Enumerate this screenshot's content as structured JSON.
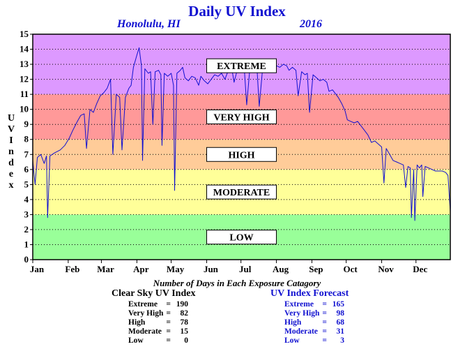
{
  "chart_data": {
    "type": "line",
    "title": "Daily UV Index",
    "subtitle_location": "Honolulu, HI",
    "subtitle_year": "2016",
    "ylabel": "UV Index",
    "ylim": [
      0,
      15
    ],
    "xlim": [
      1,
      366
    ],
    "y_ticks": [
      "0",
      "1",
      "2",
      "3",
      "4",
      "5",
      "6",
      "7",
      "8",
      "9",
      "10",
      "11",
      "12",
      "13",
      "14",
      "15"
    ],
    "x_ticks": [
      {
        "label": "Jan",
        "day": 1
      },
      {
        "label": "Feb",
        "day": 32
      },
      {
        "label": "Mar",
        "day": 61
      },
      {
        "label": "Apr",
        "day": 92
      },
      {
        "label": "May",
        "day": 122
      },
      {
        "label": "Jun",
        "day": 153
      },
      {
        "label": "Jul",
        "day": 183
      },
      {
        "label": "Aug",
        "day": 214
      },
      {
        "label": "Sep",
        "day": 245
      },
      {
        "label": "Oct",
        "day": 275
      },
      {
        "label": "Nov",
        "day": 306
      },
      {
        "label": "Dec",
        "day": 336
      }
    ],
    "grid": "horizontal-dotted",
    "zones": [
      {
        "label": "LOW",
        "from": 0,
        "to": 3,
        "color": "#99ff99"
      },
      {
        "label": "MODERATE",
        "from": 3,
        "to": 6,
        "color": "#ffff99"
      },
      {
        "label": "HIGH",
        "from": 6,
        "to": 8,
        "color": "#ffcc99"
      },
      {
        "label": "VERY HIGH",
        "from": 8,
        "to": 11,
        "color": "#ff9999"
      },
      {
        "label": "EXTREME",
        "from": 11,
        "to": 15,
        "color": "#dd99ff"
      }
    ],
    "series": [
      {
        "color": "#1010d0",
        "points": [
          [
            1,
            6.6
          ],
          [
            3,
            5.0
          ],
          [
            5,
            6.8
          ],
          [
            8,
            7.0
          ],
          [
            11,
            6.4
          ],
          [
            13,
            6.9
          ],
          [
            14,
            2.8
          ],
          [
            16,
            6.9
          ],
          [
            20,
            7.1
          ],
          [
            25,
            7.3
          ],
          [
            29,
            7.6
          ],
          [
            33,
            8.1
          ],
          [
            36,
            8.6
          ],
          [
            40,
            9.2
          ],
          [
            43,
            9.6
          ],
          [
            46,
            9.7
          ],
          [
            48,
            7.4
          ],
          [
            51,
            10.0
          ],
          [
            54,
            9.8
          ],
          [
            57,
            10.4
          ],
          [
            60,
            10.9
          ],
          [
            63,
            11.1
          ],
          [
            66,
            11.4
          ],
          [
            69,
            12.0
          ],
          [
            71,
            7.0
          ],
          [
            74,
            11.0
          ],
          [
            77,
            10.8
          ],
          [
            79,
            7.3
          ],
          [
            82,
            10.8
          ],
          [
            85,
            11.4
          ],
          [
            87,
            11.6
          ],
          [
            89,
            12.8
          ],
          [
            92,
            13.6
          ],
          [
            94,
            14.1
          ],
          [
            96,
            12.9
          ],
          [
            97,
            6.6
          ],
          [
            99,
            12.7
          ],
          [
            102,
            12.4
          ],
          [
            104,
            12.5
          ],
          [
            106,
            9.0
          ],
          [
            108,
            12.5
          ],
          [
            111,
            12.6
          ],
          [
            113,
            12.3
          ],
          [
            114,
            7.6
          ],
          [
            116,
            12.4
          ],
          [
            119,
            12.2
          ],
          [
            122,
            12.4
          ],
          [
            124,
            11.6
          ],
          [
            125,
            4.6
          ],
          [
            127,
            12.4
          ],
          [
            130,
            12.6
          ],
          [
            132,
            12.8
          ],
          [
            134,
            12.1
          ],
          [
            137,
            11.9
          ],
          [
            140,
            12.2
          ],
          [
            143,
            12.1
          ],
          [
            146,
            11.6
          ],
          [
            148,
            12.2
          ],
          [
            151,
            11.9
          ],
          [
            154,
            11.7
          ],
          [
            157,
            12.0
          ],
          [
            160,
            12.3
          ],
          [
            163,
            12.2
          ],
          [
            166,
            12.4
          ],
          [
            169,
            12.0
          ],
          [
            172,
            12.6
          ],
          [
            175,
            12.7
          ],
          [
            177,
            11.8
          ],
          [
            180,
            12.7
          ],
          [
            183,
            12.9
          ],
          [
            186,
            12.6
          ],
          [
            188,
            10.3
          ],
          [
            191,
            12.9
          ],
          [
            194,
            13.0
          ],
          [
            197,
            12.7
          ],
          [
            199,
            10.2
          ],
          [
            202,
            12.8
          ],
          [
            205,
            13.1
          ],
          [
            208,
            12.9
          ],
          [
            211,
            13.0
          ],
          [
            214,
            12.9
          ],
          [
            217,
            12.8
          ],
          [
            220,
            13.0
          ],
          [
            223,
            12.9
          ],
          [
            225,
            12.6
          ],
          [
            228,
            12.8
          ],
          [
            231,
            12.6
          ],
          [
            233,
            10.9
          ],
          [
            236,
            12.5
          ],
          [
            239,
            12.3
          ],
          [
            241,
            12.4
          ],
          [
            243,
            9.8
          ],
          [
            246,
            12.3
          ],
          [
            249,
            12.1
          ],
          [
            252,
            11.9
          ],
          [
            255,
            12.0
          ],
          [
            258,
            11.8
          ],
          [
            260,
            11.2
          ],
          [
            263,
            11.3
          ],
          [
            266,
            11.0
          ],
          [
            268,
            10.8
          ],
          [
            271,
            10.4
          ],
          [
            274,
            9.9
          ],
          [
            276,
            9.3
          ],
          [
            279,
            9.2
          ],
          [
            282,
            9.1
          ],
          [
            285,
            9.2
          ],
          [
            288,
            8.9
          ],
          [
            291,
            8.6
          ],
          [
            294,
            8.3
          ],
          [
            297,
            7.8
          ],
          [
            300,
            7.9
          ],
          [
            303,
            7.7
          ],
          [
            306,
            7.5
          ],
          [
            308,
            5.1
          ],
          [
            310,
            7.4
          ],
          [
            313,
            7.0
          ],
          [
            316,
            6.6
          ],
          [
            319,
            6.5
          ],
          [
            322,
            6.4
          ],
          [
            325,
            6.3
          ],
          [
            327,
            4.8
          ],
          [
            329,
            6.2
          ],
          [
            331,
            6.1
          ],
          [
            332,
            2.8
          ],
          [
            334,
            6.0
          ],
          [
            335,
            2.6
          ],
          [
            337,
            6.3
          ],
          [
            339,
            6.1
          ],
          [
            341,
            6.3
          ],
          [
            342,
            4.2
          ],
          [
            344,
            6.2
          ],
          [
            347,
            6.1
          ],
          [
            350,
            6.0
          ],
          [
            353,
            5.9
          ],
          [
            356,
            5.9
          ],
          [
            359,
            5.9
          ],
          [
            362,
            5.8
          ],
          [
            364,
            5.6
          ],
          [
            366,
            3.2
          ]
        ]
      }
    ]
  },
  "stats_title": "Number of Days in Each Exposure Catagory",
  "clear_sky": {
    "title": "Clear Sky UV Index",
    "rows": [
      {
        "label": "Extreme",
        "value": "190"
      },
      {
        "label": "Very High",
        "value": "82"
      },
      {
        "label": "High",
        "value": "78"
      },
      {
        "label": "Moderate",
        "value": "15"
      },
      {
        "label": "Low",
        "value": "0"
      }
    ]
  },
  "forecast": {
    "title": "UV Index Forecast",
    "rows": [
      {
        "label": "Extreme",
        "value": "165"
      },
      {
        "label": "Very High",
        "value": "98"
      },
      {
        "label": "High",
        "value": "68"
      },
      {
        "label": "Moderate",
        "value": "31"
      },
      {
        "label": "Low",
        "value": "3"
      }
    ]
  }
}
